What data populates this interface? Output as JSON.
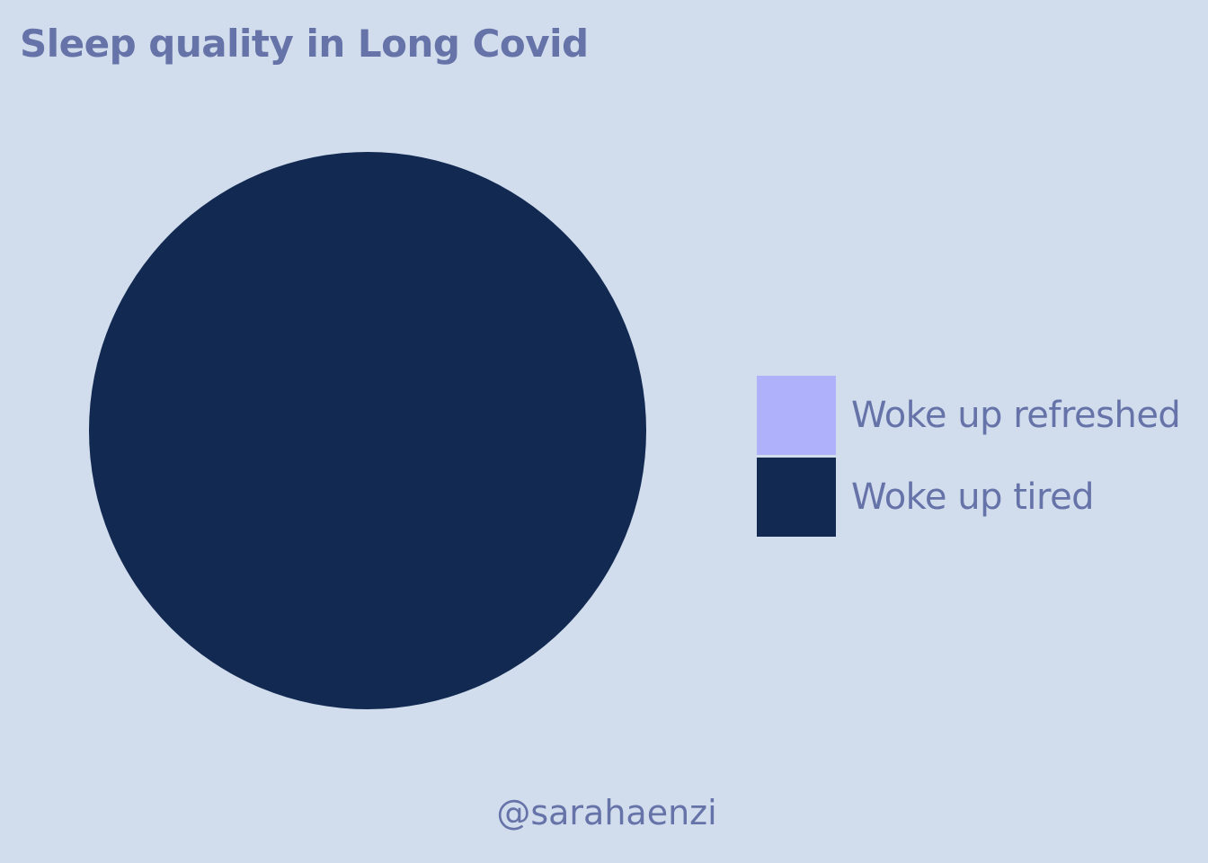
{
  "chart_data": {
    "type": "pie",
    "title": "Sleep quality in Long Covid",
    "slices": [
      {
        "label": "Woke up refreshed",
        "value": 0,
        "color": "#afb2fa"
      },
      {
        "label": "Woke up tired",
        "value": 100,
        "color": "#122951"
      }
    ],
    "legend_position": "right"
  },
  "credit": "@sarahaenzi",
  "colors": {
    "background": "#d1dced",
    "text": "#6673a8"
  }
}
